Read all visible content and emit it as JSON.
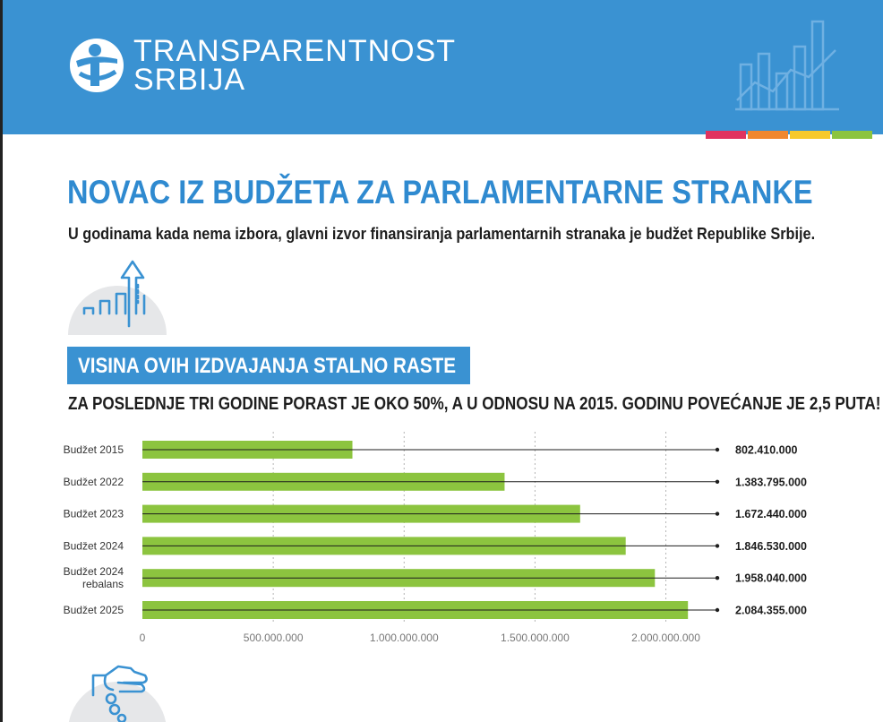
{
  "header": {
    "org_line1": "TRANSPARENTNOST",
    "org_line2": "SRBIJA",
    "logo_icon": "transparency-logo-icon",
    "deco_icon": "bar-line-chart-icon",
    "background": "#3a92d2",
    "stripe_colors": [
      "#e0335f",
      "#f0872d",
      "#f7c92b",
      "#8cc43f"
    ]
  },
  "title": "NOVAC IZ BUDŽETA ZA PARLAMENTARNE STRANKE",
  "subtitle": "U godinama kada nema izbora, glavni izvor finansiranja parlamentarnih stranaka je budžet Republike Srbije.",
  "section": {
    "heading": "VISINA OVIH IZDVAJANJA STALNO RASTE",
    "headline": "ZA POSLEDNJE TRI GODINE PORAST JE OKO 50%, A U ODNOSU NA 2015. GODINU POVEĆANJE JE 2,5 PUTA!",
    "icon": "growth-chart-arrow-icon",
    "bottom_icon": "hand-coins-icon"
  },
  "colors": {
    "accent": "#2f8ad0",
    "bar": "#8cc43f",
    "text": "#1d1d1d"
  },
  "chart_data": {
    "type": "bar",
    "orientation": "horizontal",
    "categories": [
      [
        "Budžet 2015"
      ],
      [
        "Budžet 2022"
      ],
      [
        "Budžet 2023"
      ],
      [
        "Budžet 2024"
      ],
      [
        "Budžet 2024",
        "rebalans"
      ],
      [
        "Budžet 2025"
      ]
    ],
    "values": [
      802410000,
      1383795000,
      1672440000,
      1846530000,
      1958040000,
      2084355000
    ],
    "value_labels": [
      "802.410.000",
      "1.383.795.000",
      "1.672.440.000",
      "1.846.530.000",
      "1.958.040.000",
      "2.084.355.000"
    ],
    "x_ticks": [
      0,
      500000000,
      1000000000,
      1500000000,
      2000000000
    ],
    "x_tick_labels": [
      "0",
      "500.000.000",
      "1.000.000.000",
      "1.500.000.000",
      "2.000.000.000"
    ],
    "xlim": [
      0,
      2200000000
    ],
    "grid": "vertical dotted",
    "legend": "none"
  }
}
